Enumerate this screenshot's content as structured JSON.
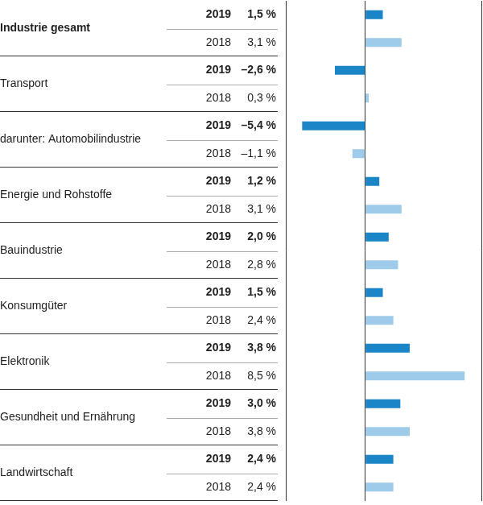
{
  "chart_data": {
    "type": "bar",
    "orientation": "horizontal",
    "categories": [
      "Industrie gesamt",
      "Transport",
      "darunter: Automobilindustrie",
      "Energie und Rohstoffe",
      "Bauindustrie",
      "Konsumgüter",
      "Elektronik",
      "Gesundheit und Ernährung",
      "Landwirtschaft"
    ],
    "series": [
      {
        "name": "2019",
        "color": "#1a86c8",
        "values": [
          1.5,
          -2.6,
          -5.4,
          1.2,
          2.0,
          1.5,
          3.8,
          3.0,
          2.4
        ],
        "value_labels": [
          "1,5 %",
          "–2,6 %",
          "–5,4 %",
          "1,2 %",
          "2,0 %",
          "1,5 %",
          "3,8 %",
          "3,0 %",
          "2,4 %"
        ]
      },
      {
        "name": "2018",
        "color": "#9fcbeb",
        "values": [
          3.1,
          0.3,
          -1.1,
          3.1,
          2.8,
          2.4,
          8.5,
          3.8,
          2.4
        ],
        "value_labels": [
          "3,1 %",
          "0,3 %",
          "–1,1 %",
          "3,1 %",
          "2,8 %",
          "2,4 %",
          "8,5 %",
          "3,8 %",
          "2,4 %"
        ]
      }
    ],
    "xlim": [
      -6.8,
      10
    ],
    "xticks": [
      0
    ],
    "grid": true,
    "tick_labels": false,
    "data_labels": true
  }
}
